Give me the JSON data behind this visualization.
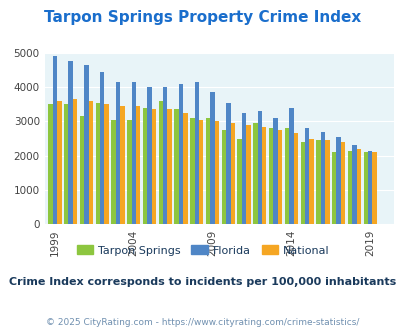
{
  "title": "Tarpon Springs Property Crime Index",
  "title_color": "#1a6ecc",
  "years": [
    1999,
    2000,
    2001,
    2002,
    2003,
    2004,
    2005,
    2006,
    2007,
    2008,
    2009,
    2010,
    2011,
    2012,
    2013,
    2014,
    2015,
    2016,
    2017,
    2018,
    2019,
    2020
  ],
  "tarpon_springs": [
    3500,
    3500,
    3150,
    3550,
    3050,
    3050,
    3400,
    3600,
    3350,
    3100,
    3100,
    2750,
    2500,
    2950,
    2800,
    2800,
    2400,
    2450,
    2100,
    2150,
    2100,
    0
  ],
  "florida": [
    4900,
    4750,
    4650,
    4450,
    4150,
    4150,
    4000,
    4000,
    4100,
    4150,
    3850,
    3550,
    3250,
    3300,
    3100,
    3400,
    2800,
    2700,
    2550,
    2300,
    2150,
    0
  ],
  "national": [
    3600,
    3650,
    3600,
    3500,
    3450,
    3450,
    3350,
    3350,
    3250,
    3050,
    3000,
    2950,
    2900,
    2850,
    2750,
    2650,
    2500,
    2450,
    2400,
    2200,
    2100,
    0
  ],
  "bar_width": 0.28,
  "colors": {
    "tarpon": "#8dc63f",
    "florida": "#4f86c6",
    "national": "#f5a623"
  },
  "bg_color": "#e8f4f8",
  "ylim": [
    0,
    5000
  ],
  "yticks": [
    0,
    1000,
    2000,
    3000,
    4000,
    5000
  ],
  "xtick_years": [
    1999,
    2004,
    2009,
    2014,
    2019
  ],
  "subtitle": "Crime Index corresponds to incidents per 100,000 inhabitants",
  "subtitle_color": "#1a3a5c",
  "footer": "© 2025 CityRating.com - https://www.cityrating.com/crime-statistics/",
  "footer_color": "#7090b0",
  "legend_labels": [
    "Tarpon Springs",
    "Florida",
    "National"
  ],
  "title_fontsize": 11,
  "subtitle_fontsize": 8,
  "footer_fontsize": 6.5
}
